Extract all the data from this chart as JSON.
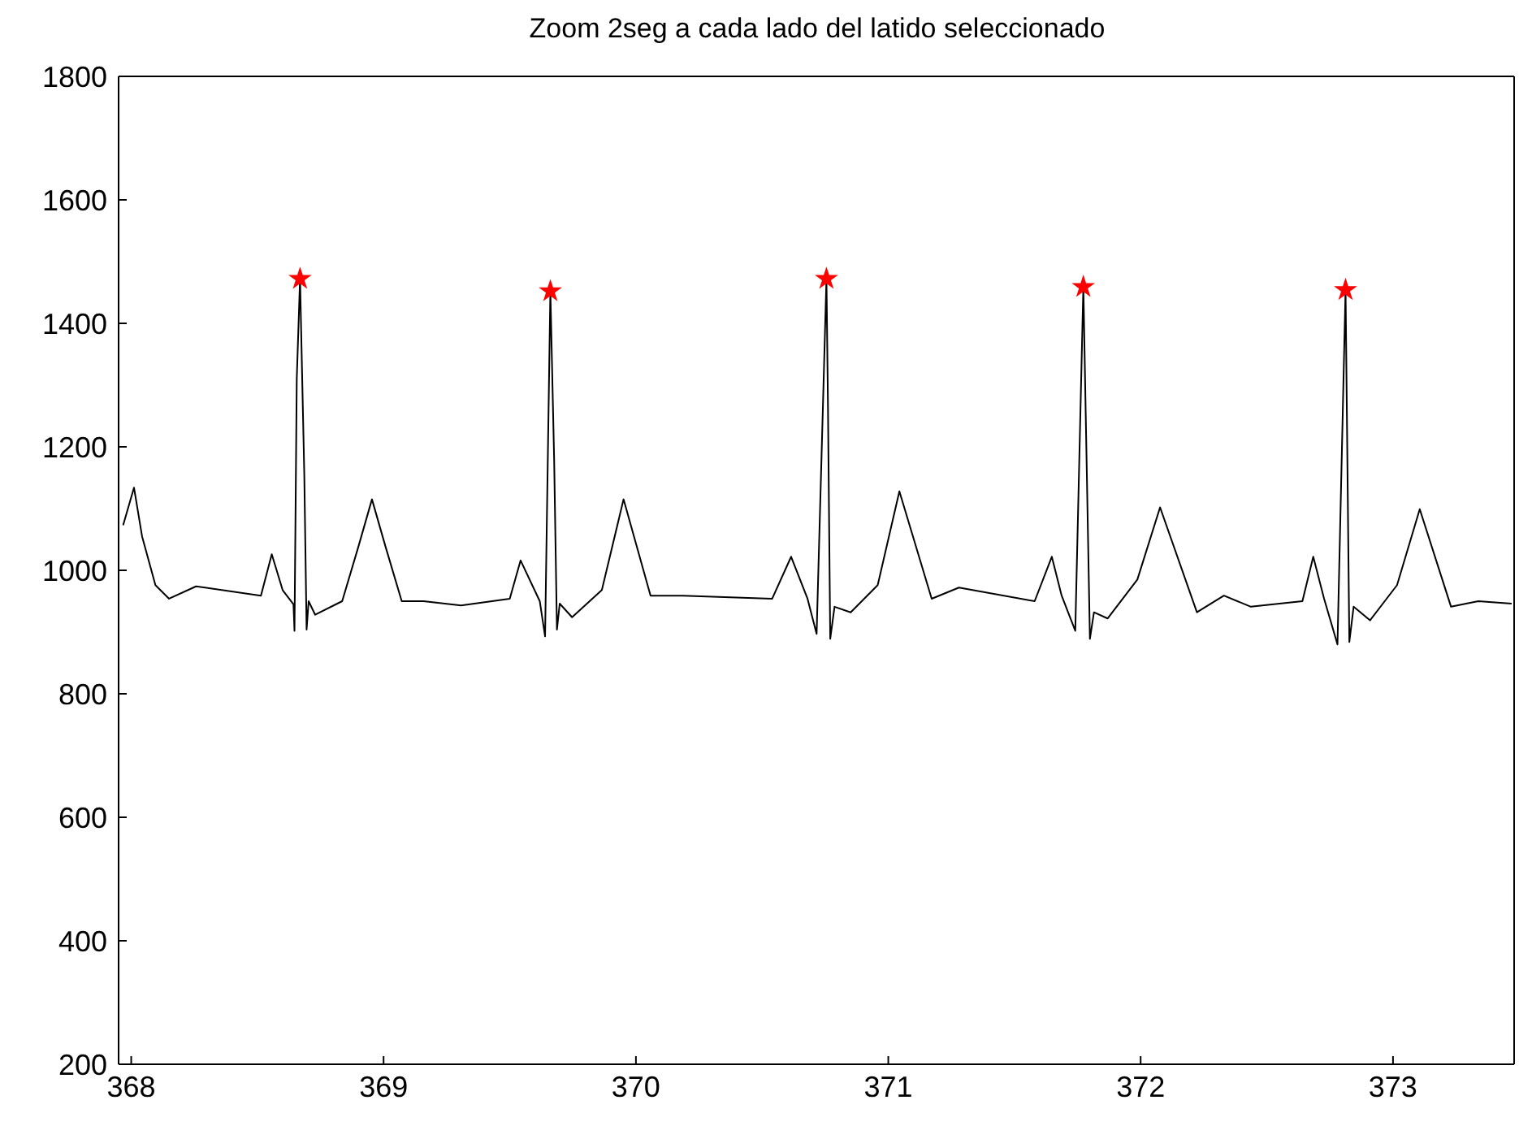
{
  "chart_data": {
    "type": "line",
    "title": "Zoom 2seg a cada lado del latido seleccionado",
    "xlim": [
      367.95,
      373.48
    ],
    "xticks": [
      368,
      369,
      370,
      371,
      372,
      373
    ],
    "ylim": [
      200,
      1800
    ],
    "yticks": [
      200,
      400,
      600,
      800,
      1000,
      1200,
      1400,
      1600,
      1800
    ],
    "grid": false,
    "series": [
      {
        "color": "#000000",
        "marker": "none",
        "line_style": "solid",
        "x": [
          367.968,
          368.011,
          368.043,
          368.096,
          368.15,
          368.257,
          368.514,
          368.557,
          368.6,
          368.643,
          368.647,
          368.656,
          368.669,
          368.686,
          368.695,
          368.703,
          368.729,
          368.836,
          368.9,
          368.954,
          369.008,
          369.072,
          369.158,
          369.307,
          369.5,
          369.543,
          369.619,
          369.64,
          369.661,
          369.676,
          369.687,
          369.698,
          369.747,
          369.865,
          369.951,
          370.058,
          370.186,
          370.54,
          370.615,
          370.68,
          370.716,
          370.755,
          370.761,
          370.77,
          370.787,
          370.851,
          370.958,
          371.044,
          371.172,
          371.28,
          371.58,
          371.648,
          371.687,
          371.741,
          371.773,
          371.799,
          371.815,
          371.869,
          371.987,
          372.077,
          372.223,
          372.33,
          372.437,
          372.641,
          372.684,
          372.727,
          372.78,
          372.812,
          372.827,
          372.844,
          372.909,
          373.016,
          373.106,
          373.23,
          373.338,
          373.47
        ],
        "values": [
          1073,
          1134,
          1055,
          976,
          954,
          974,
          959,
          1026,
          968,
          945,
          902,
          1310,
          1472,
          1152,
          904,
          950,
          928,
          950,
          1038,
          1115,
          1038,
          950,
          950,
          943,
          954,
          1016,
          950,
          893,
          1452,
          1178,
          904,
          946,
          924,
          968,
          1115,
          959,
          959,
          954,
          1022,
          954,
          897,
          1472,
          1266,
          889,
          941,
          932,
          976,
          1128,
          954,
          972,
          950,
          1022,
          959,
          902,
          1459,
          889,
          932,
          922,
          985,
          1102,
          932,
          959,
          941,
          950,
          1022,
          954,
          880,
          1454,
          884,
          941,
          919,
          976,
          1099,
          941,
          950,
          946
        ]
      },
      {
        "type": "scatter",
        "color": "#ff0000",
        "marker": "star",
        "x": [
          368.669,
          369.661,
          370.755,
          371.773,
          372.812
        ],
        "values": [
          1472,
          1452,
          1472,
          1459,
          1454
        ]
      }
    ]
  }
}
